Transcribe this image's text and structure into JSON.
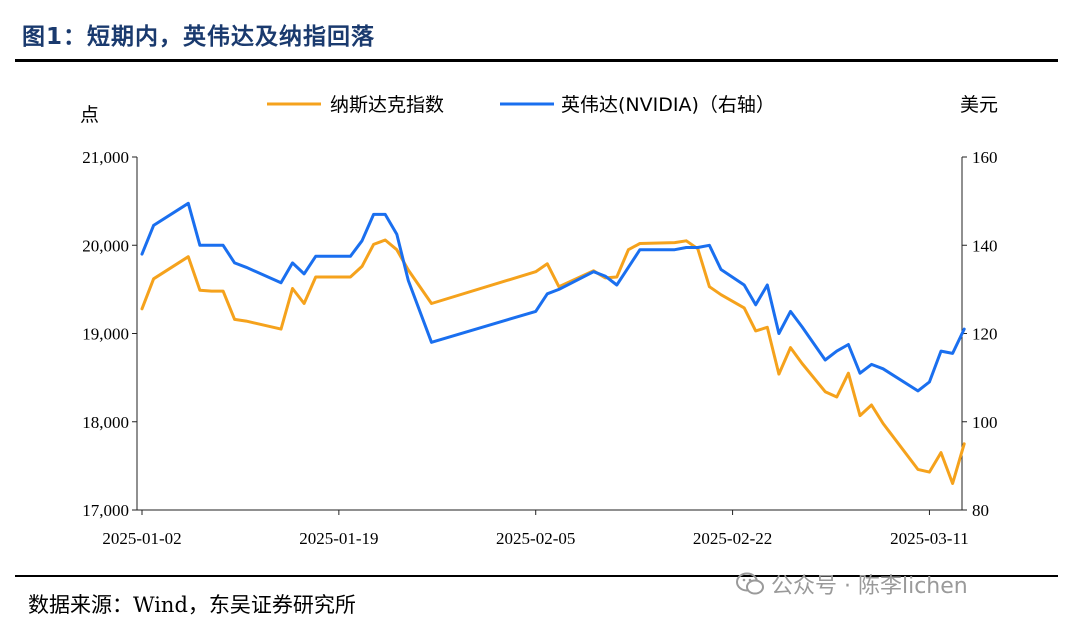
{
  "figure": {
    "title": "图1：短期内，英伟达及纳指回落",
    "source": "数据来源：Wind，东吴证券研究所",
    "watermark": "公众号 · 陈李lichen"
  },
  "chart_data": {
    "type": "line",
    "left_unit": "点",
    "right_unit": "美元",
    "yleft_lim": [
      17000,
      21000
    ],
    "yleft_ticks": [
      "17,000",
      "18,000",
      "19,000",
      "20,000",
      "21,000"
    ],
    "yleft_tick_values": [
      17000,
      18000,
      19000,
      20000,
      21000
    ],
    "yright_lim": [
      80,
      160
    ],
    "yright_ticks": [
      "80",
      "100",
      "120",
      "140",
      "160"
    ],
    "yright_tick_values": [
      80,
      100,
      120,
      140,
      160
    ],
    "x_range": [
      0,
      70
    ],
    "x_ticks": [
      "2025-01-02",
      "2025-01-19",
      "2025-02-05",
      "2025-02-22",
      "2025-03-11"
    ],
    "x_tick_values": [
      0,
      17,
      34,
      51,
      68
    ],
    "series": [
      {
        "name": "纳斯达克指数",
        "axis": "left",
        "color": "#f5a21c",
        "x": [
          0,
          1,
          4,
          5,
          6,
          7,
          8,
          9,
          12,
          13,
          14,
          15,
          16,
          17,
          18,
          19,
          20,
          21,
          22,
          23,
          25,
          34,
          35,
          36,
          39,
          40,
          41,
          42,
          43,
          46,
          47,
          48,
          49,
          50,
          52,
          53,
          54,
          55,
          56,
          57,
          59,
          60,
          61,
          62,
          63,
          64,
          67,
          68,
          69,
          70,
          71
        ],
        "values": [
          19280,
          19620,
          19870,
          19490,
          19480,
          19480,
          19160,
          19140,
          19050,
          19510,
          19340,
          19640,
          19640,
          19640,
          19640,
          19760,
          20010,
          20060,
          19950,
          19720,
          19340,
          19700,
          19790,
          19530,
          19710,
          19630,
          19640,
          19950,
          20020,
          20030,
          20050,
          19960,
          19530,
          19440,
          19290,
          19030,
          19070,
          18540,
          18840,
          18660,
          18340,
          18280,
          18550,
          18070,
          18190,
          17980,
          17460,
          17430,
          17650,
          17300,
          17750
        ]
      },
      {
        "name": "英伟达(NVIDIA)（右轴）",
        "axis": "right",
        "color": "#1a6fef",
        "x": [
          0,
          1,
          4,
          5,
          6,
          7,
          8,
          9,
          12,
          13,
          14,
          15,
          16,
          17,
          18,
          19,
          20,
          21,
          22,
          23,
          25,
          34,
          35,
          36,
          39,
          40,
          41,
          42,
          43,
          46,
          47,
          48,
          49,
          50,
          52,
          53,
          54,
          55,
          56,
          57,
          59,
          60,
          61,
          62,
          63,
          64,
          67,
          68,
          69,
          70,
          71
        ],
        "values": [
          138,
          144.5,
          149.5,
          140,
          140,
          140,
          136,
          135,
          131.5,
          136,
          133.5,
          137.5,
          137.5,
          137.5,
          137.5,
          141,
          147,
          147,
          142.5,
          132,
          118,
          125,
          129,
          130,
          134,
          133,
          131,
          135,
          139,
          139,
          139.5,
          139.5,
          140,
          134.5,
          131,
          126.5,
          131,
          120,
          125,
          121.5,
          114,
          116,
          117.5,
          111,
          113,
          112,
          107,
          109,
          116,
          115.5,
          121
        ]
      }
    ]
  }
}
